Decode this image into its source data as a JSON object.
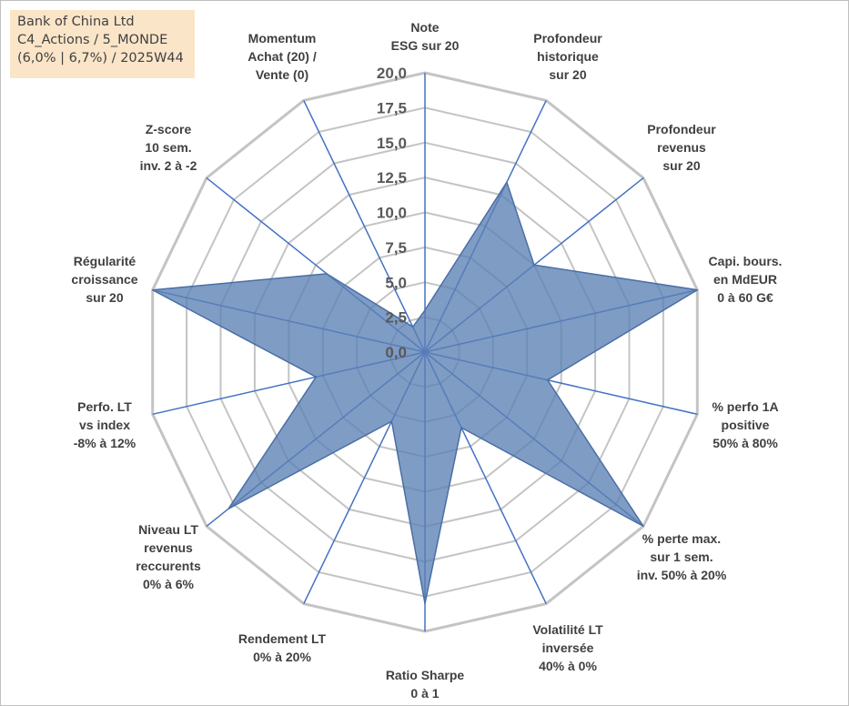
{
  "info_box": {
    "lines": [
      "Bank of China Ltd",
      "C4_Actions / 5_MONDE",
      "(6,0% | 6,7%) / 2025W44"
    ]
  },
  "colors": {
    "fill": "#5b80b5",
    "fill_opacity": 0.78,
    "outline": "#4a6fa5",
    "spoke": "#4472c4",
    "grid": "#c4c4c4",
    "tick_text": "#595959",
    "label_text": "#404040",
    "info_bg": "#fbe5c8"
  },
  "chart_data": {
    "type": "radar",
    "title": "",
    "rlim": [
      0,
      20
    ],
    "rticks": [
      "0,0",
      "2,5",
      "5,0",
      "7,5",
      "10,0",
      "12,5",
      "15,0",
      "17,5",
      "20,0"
    ],
    "grid": true,
    "categories": [
      [
        "Note",
        "ESG sur 20"
      ],
      [
        "Profondeur",
        "historique",
        "sur 20"
      ],
      [
        "Profondeur",
        "revenus",
        "sur 20"
      ],
      [
        "Capi. bours.",
        "en MdEUR",
        "0 à 60 G€"
      ],
      [
        "% perfo 1A",
        "positive",
        "50% à 80%"
      ],
      [
        "% perte max.",
        "sur 1 sem.",
        "inv. 50% à 20%"
      ],
      [
        "Volatilité LT",
        "inversée",
        "40% à 0%"
      ],
      [
        "Ratio Sharpe",
        "0 à 1"
      ],
      [
        "Rendement LT",
        "0% à 20%"
      ],
      [
        "Niveau LT",
        "revenus",
        "reccurents",
        "0% à 6%"
      ],
      [
        "Perfo. LT",
        "vs index",
        "-8% à 12%"
      ],
      [
        "Régularité",
        "croissance",
        "sur 20"
      ],
      [
        "Z-score",
        "10 sem.",
        "inv. 2 à -2"
      ],
      [
        "Momentum",
        "Achat (20) /",
        "Vente (0)"
      ]
    ],
    "series": [
      {
        "name": "Bank of China Ltd",
        "values": [
          3.0,
          13.5,
          10.0,
          20.0,
          9.0,
          20.0,
          6.0,
          18.0,
          5.5,
          18.0,
          8.0,
          20.0,
          9.0,
          2.0
        ]
      }
    ]
  }
}
